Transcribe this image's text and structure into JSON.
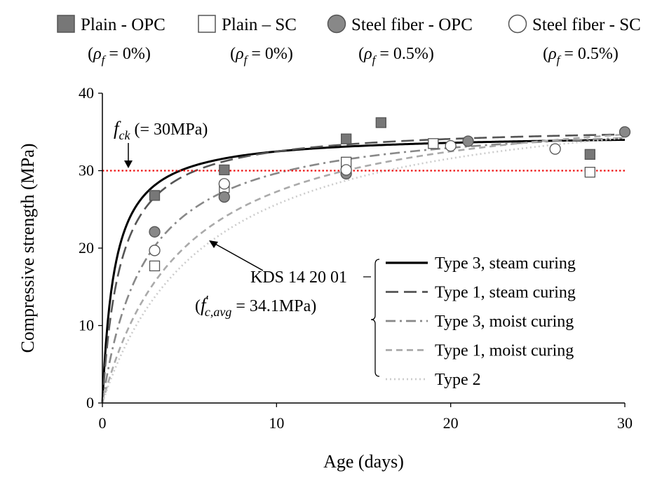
{
  "chart_data": {
    "type": "scatter",
    "xlabel": "Age (days)",
    "ylabel": "Compressive strength (MPa)",
    "xlim": [
      0,
      30
    ],
    "ylim": [
      0,
      40
    ],
    "xticks": [
      "0",
      "10",
      "20",
      "30"
    ],
    "yticks": [
      "0",
      "10",
      "20",
      "30",
      "40"
    ],
    "grid": false,
    "markers": [
      {
        "name": "Plain - OPC",
        "sub_prefix": "(",
        "sub_suffix": " = 0%)",
        "marker": "square-filled",
        "points": [
          [
            3,
            26.8
          ],
          [
            7,
            30.1
          ],
          [
            14,
            34.1
          ],
          [
            16,
            36.2
          ],
          [
            28,
            32.1
          ]
        ]
      },
      {
        "name": "Plain – SC",
        "sub_prefix": "(",
        "sub_suffix": " = 0%)",
        "marker": "square-open",
        "points": [
          [
            3,
            17.7
          ],
          [
            7,
            27.8
          ],
          [
            14,
            31.1
          ],
          [
            19,
            33.5
          ],
          [
            28,
            29.8
          ]
        ]
      },
      {
        "name": "Steel fiber - OPC",
        "sub_prefix": "(",
        "sub_suffix": " = 0.5%)",
        "marker": "circle-filled",
        "points": [
          [
            3,
            22.1
          ],
          [
            7,
            26.6
          ],
          [
            14,
            29.6
          ],
          [
            21,
            33.8
          ],
          [
            30,
            35.0
          ]
        ]
      },
      {
        "name": "Steel fiber - SC",
        "sub_prefix": "(",
        "sub_suffix": " = 0.5%)",
        "marker": "circle-open",
        "points": [
          [
            3,
            19.7
          ],
          [
            7,
            28.3
          ],
          [
            14,
            30.1
          ],
          [
            20,
            33.2
          ],
          [
            26,
            32.8
          ]
        ]
      }
    ],
    "curves": [
      {
        "name": "Type 3, steam curing",
        "a": 0.7,
        "b": 0.98,
        "color": "#000000",
        "dash": "solid"
      },
      {
        "name": "Type 1, steam curing",
        "a": 1.0,
        "b": 0.95,
        "color": "#555555",
        "dash": "dash"
      },
      {
        "name": "Type 3, moist curing",
        "a": 2.3,
        "b": 0.92,
        "color": "#888888",
        "dash": "dashdot"
      },
      {
        "name": "Type 1, moist curing",
        "a": 4.0,
        "b": 0.85,
        "color": "#aaaaaa",
        "dash": "shortdash"
      },
      {
        "name": "Type 2",
        "a": 5.0,
        "b": 0.83,
        "color": "#cccccc",
        "dash": "dot"
      }
    ],
    "curve_group_label": "KDS 14 20 01",
    "curve_group_sub_value": " = 34.1MPa)",
    "fcavg": 34.1,
    "reference_line": {
      "y": 30,
      "color": "#ee1111",
      "label_suffix": " (= 30MPa)"
    },
    "math": {
      "rho": "ρ",
      "rho_sub": "f",
      "f": "f",
      "fck_sub": "ck",
      "fcavg_sub": "c,avg",
      "prime": "′"
    }
  }
}
